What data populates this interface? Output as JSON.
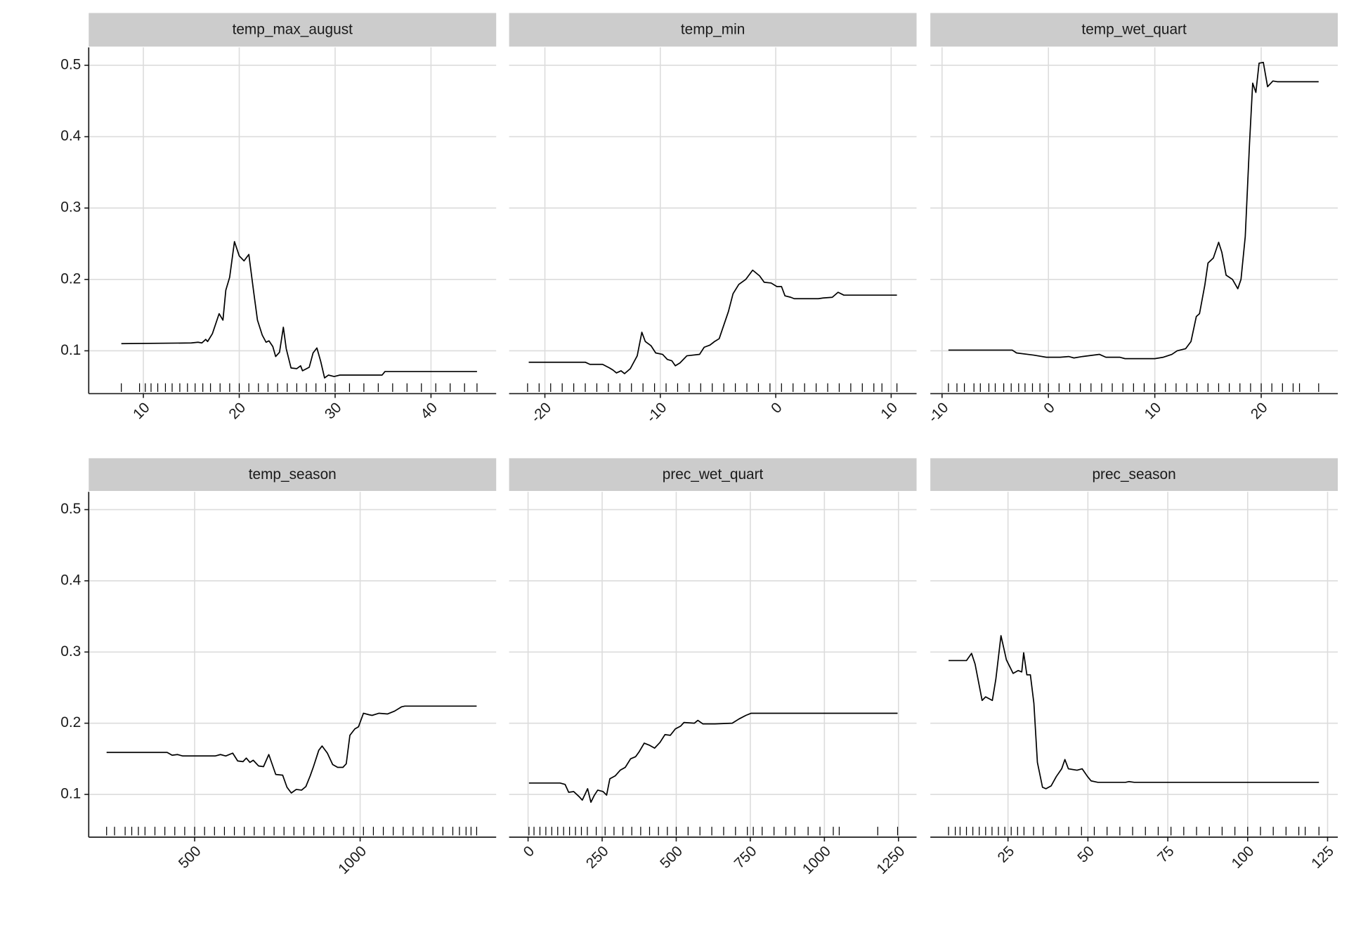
{
  "chart_data": [
    {
      "type": "line",
      "title": "temp_max_august",
      "color": "#000000",
      "grid": true,
      "x": [
        7.7,
        15.0,
        15.7,
        16.1,
        16.5,
        16.7,
        17.2,
        17.9,
        18.3,
        18.6,
        19.0,
        19.5,
        20.0,
        20.5,
        21.0,
        21.5,
        21.9,
        22.4,
        22.8,
        23.1,
        23.5,
        23.8,
        24.2,
        24.6,
        24.9,
        25.4,
        26.0,
        26.4,
        26.6,
        27.3,
        27.7,
        28.1,
        28.5,
        28.9,
        29.3,
        29.9,
        30.5,
        34.9,
        35.2,
        44.8
      ],
      "values": [
        0.11,
        0.111,
        0.112,
        0.111,
        0.116,
        0.113,
        0.124,
        0.152,
        0.143,
        0.185,
        0.203,
        0.253,
        0.233,
        0.226,
        0.235,
        0.183,
        0.143,
        0.122,
        0.112,
        0.114,
        0.106,
        0.092,
        0.098,
        0.133,
        0.103,
        0.076,
        0.075,
        0.079,
        0.072,
        0.077,
        0.097,
        0.104,
        0.085,
        0.062,
        0.066,
        0.064,
        0.066,
        0.066,
        0.071,
        0.071
      ],
      "rug": [
        7.7,
        9.6,
        10.2,
        10.8,
        11.5,
        12.3,
        13.0,
        13.8,
        14.6,
        15.4,
        16.2,
        17.0,
        18.0,
        19.0,
        20.0,
        21.0,
        22.0,
        23.0,
        24.0,
        25.0,
        26.0,
        27.0,
        28.0,
        29.0,
        30.0,
        31.5,
        33.0,
        34.5,
        36.0,
        37.5,
        39.0,
        40.5,
        42.0,
        43.5,
        44.8
      ],
      "xlim": [
        4.3,
        46.8
      ],
      "xticks": [
        10,
        20,
        30,
        40
      ],
      "ylim": [
        0.04,
        0.525
      ],
      "yticks": [
        0.1,
        0.2,
        0.3,
        0.4,
        0.5
      ]
    },
    {
      "type": "line",
      "title": "temp_min",
      "color": "#000000",
      "grid": true,
      "x": [
        -21.4,
        -16.5,
        -16.1,
        -15.0,
        -14.4,
        -14.1,
        -13.8,
        -13.4,
        -13.1,
        -12.6,
        -12.0,
        -11.6,
        -11.3,
        -10.8,
        -10.4,
        -9.8,
        -9.4,
        -9.0,
        -8.7,
        -8.3,
        -7.7,
        -6.6,
        -6.2,
        -5.7,
        -5.3,
        -4.9,
        -4.1,
        -3.7,
        -3.2,
        -2.6,
        -2.0,
        -1.4,
        -1.0,
        -0.4,
        0.1,
        0.5,
        0.8,
        1.3,
        1.6,
        3.7,
        4.1,
        4.9,
        5.4,
        5.9,
        10.5
      ],
      "values": [
        0.084,
        0.084,
        0.081,
        0.081,
        0.076,
        0.073,
        0.069,
        0.072,
        0.068,
        0.075,
        0.093,
        0.126,
        0.113,
        0.107,
        0.097,
        0.095,
        0.088,
        0.086,
        0.079,
        0.083,
        0.093,
        0.095,
        0.105,
        0.108,
        0.113,
        0.117,
        0.155,
        0.18,
        0.193,
        0.2,
        0.213,
        0.205,
        0.196,
        0.195,
        0.19,
        0.19,
        0.177,
        0.175,
        0.173,
        0.173,
        0.174,
        0.175,
        0.182,
        0.178,
        0.178
      ],
      "rug": [
        -21.5,
        -20.5,
        -19.5,
        -18.5,
        -17.5,
        -16.5,
        -15.5,
        -14.5,
        -13.5,
        -12.5,
        -11.5,
        -10.5,
        -9.5,
        -8.5,
        -7.5,
        -6.5,
        -5.5,
        -4.5,
        -3.5,
        -2.5,
        -1.5,
        -0.5,
        0.5,
        1.5,
        2.5,
        3.5,
        4.5,
        5.5,
        6.5,
        7.5,
        8.5,
        9.2,
        10.5
      ],
      "xlim": [
        -23.1,
        12.2
      ],
      "xticks": [
        -20,
        -10,
        0,
        10
      ],
      "ylim": [
        0.04,
        0.525
      ],
      "yticks": [
        0.1,
        0.2,
        0.3,
        0.4,
        0.5
      ]
    },
    {
      "type": "line",
      "title": "temp_wet_quart",
      "color": "#000000",
      "grid": true,
      "x": [
        -9.4,
        -3.4,
        -3.0,
        -1.4,
        -0.2,
        1.1,
        1.9,
        2.4,
        3.2,
        4.8,
        5.4,
        6.7,
        7.2,
        10.0,
        10.8,
        11.6,
        12.1,
        12.9,
        13.4,
        13.9,
        14.2,
        14.7,
        15.0,
        15.5,
        16.0,
        16.3,
        16.7,
        17.3,
        17.8,
        18.1,
        18.5,
        18.9,
        19.2,
        19.5,
        19.8,
        20.2,
        20.6,
        21.1,
        21.5,
        25.4
      ],
      "values": [
        0.101,
        0.101,
        0.097,
        0.094,
        0.091,
        0.091,
        0.092,
        0.09,
        0.092,
        0.095,
        0.091,
        0.091,
        0.089,
        0.089,
        0.091,
        0.095,
        0.1,
        0.103,
        0.113,
        0.148,
        0.152,
        0.192,
        0.223,
        0.23,
        0.252,
        0.238,
        0.206,
        0.2,
        0.187,
        0.2,
        0.26,
        0.39,
        0.475,
        0.462,
        0.503,
        0.504,
        0.47,
        0.478,
        0.477,
        0.477
      ],
      "rug": [
        -9.4,
        -8.6,
        -7.9,
        -7.0,
        -6.4,
        -5.6,
        -5.0,
        -4.2,
        -3.5,
        -2.8,
        -2.2,
        -1.5,
        -0.8,
        0,
        1,
        2,
        3,
        4,
        5,
        6,
        7,
        8,
        9,
        10,
        11,
        12,
        13,
        14,
        15,
        16,
        17,
        18,
        19,
        20,
        21,
        22,
        23,
        23.6,
        25.4
      ],
      "xlim": [
        -11.1,
        27.2
      ],
      "xticks": [
        -10,
        0,
        10,
        20
      ],
      "ylim": [
        0.04,
        0.525
      ],
      "yticks": [
        0.1,
        0.2,
        0.3,
        0.4,
        0.5
      ]
    },
    {
      "type": "line",
      "title": "temp_season",
      "color": "#000000",
      "grid": true,
      "x": [
        234,
        417,
        432,
        448,
        464,
        562,
        578,
        594,
        615,
        630,
        646,
        656,
        667,
        677,
        693,
        708,
        724,
        745,
        766,
        779,
        792,
        807,
        823,
        836,
        849,
        859,
        875,
        885,
        901,
        917,
        932,
        948,
        958,
        969,
        984,
        995,
        1010,
        1026,
        1036,
        1057,
        1083,
        1104,
        1125,
        1135,
        1352
      ],
      "values": [
        0.159,
        0.159,
        0.155,
        0.156,
        0.154,
        0.154,
        0.156,
        0.154,
        0.158,
        0.147,
        0.146,
        0.151,
        0.145,
        0.148,
        0.14,
        0.139,
        0.156,
        0.128,
        0.127,
        0.11,
        0.102,
        0.107,
        0.106,
        0.111,
        0.126,
        0.139,
        0.162,
        0.168,
        0.158,
        0.142,
        0.138,
        0.138,
        0.143,
        0.183,
        0.192,
        0.195,
        0.214,
        0.212,
        0.211,
        0.214,
        0.213,
        0.217,
        0.223,
        0.224,
        0.224
      ],
      "rug": [
        234,
        258,
        290,
        310,
        330,
        350,
        380,
        410,
        440,
        470,
        500,
        530,
        560,
        590,
        620,
        650,
        680,
        710,
        740,
        770,
        800,
        830,
        860,
        890,
        920,
        950,
        980,
        1010,
        1040,
        1070,
        1100,
        1130,
        1160,
        1190,
        1220,
        1250,
        1280,
        1300,
        1320,
        1335,
        1352
      ],
      "xlim": [
        180,
        1411
      ],
      "xticks": [
        500,
        1000
      ],
      "ylim": [
        0.04,
        0.525
      ],
      "yticks": [
        0.1,
        0.2,
        0.3,
        0.4,
        0.5
      ]
    },
    {
      "type": "line",
      "title": "prec_wet_quart",
      "color": "#000000",
      "grid": true,
      "x": [
        3,
        108,
        125,
        137,
        154,
        172,
        183,
        201,
        212,
        224,
        235,
        253,
        265,
        276,
        294,
        311,
        328,
        346,
        363,
        375,
        392,
        410,
        427,
        445,
        462,
        480,
        497,
        515,
        526,
        561,
        573,
        590,
        631,
        689,
        712,
        735,
        753,
        794,
        1247
      ],
      "values": [
        0.116,
        0.116,
        0.114,
        0.103,
        0.104,
        0.097,
        0.092,
        0.108,
        0.089,
        0.099,
        0.106,
        0.104,
        0.099,
        0.122,
        0.126,
        0.134,
        0.138,
        0.15,
        0.153,
        0.16,
        0.172,
        0.169,
        0.165,
        0.173,
        0.184,
        0.183,
        0.192,
        0.196,
        0.201,
        0.2,
        0.204,
        0.199,
        0.199,
        0.2,
        0.206,
        0.211,
        0.214,
        0.214,
        0.214
      ],
      "rug": [
        3,
        20,
        40,
        60,
        80,
        100,
        120,
        140,
        160,
        180,
        200,
        230,
        260,
        290,
        320,
        350,
        380,
        410,
        440,
        470,
        500,
        540,
        580,
        620,
        660,
        700,
        740,
        760,
        790,
        830,
        870,
        900,
        945,
        985,
        1030,
        1050,
        1180,
        1247
      ],
      "xlim": [
        -64,
        1311
      ],
      "xticks": [
        0,
        250,
        500,
        750,
        1000,
        1250
      ],
      "ylim": [
        0.04,
        0.525
      ],
      "yticks": [
        0.1,
        0.2,
        0.3,
        0.4,
        0.5
      ]
    },
    {
      "type": "line",
      "title": "prec_season",
      "color": "#000000",
      "grid": true,
      "x": [
        6.4,
        12.0,
        13.6,
        14.7,
        16.9,
        18.0,
        20.1,
        21.2,
        22.8,
        24.5,
        26.6,
        28.2,
        29.3,
        29.9,
        30.9,
        32.0,
        33.1,
        34.2,
        35.8,
        36.9,
        38.5,
        40.1,
        41.8,
        42.8,
        43.9,
        46.6,
        48.2,
        49.9,
        51.0,
        53.1,
        61.8,
        62.8,
        64.5,
        122.3
      ],
      "values": [
        0.288,
        0.288,
        0.298,
        0.283,
        0.232,
        0.237,
        0.232,
        0.262,
        0.323,
        0.289,
        0.27,
        0.274,
        0.272,
        0.299,
        0.268,
        0.268,
        0.228,
        0.145,
        0.11,
        0.108,
        0.112,
        0.125,
        0.136,
        0.149,
        0.136,
        0.134,
        0.136,
        0.125,
        0.119,
        0.117,
        0.117,
        0.118,
        0.117,
        0.117
      ],
      "rug": [
        6.4,
        8.5,
        10,
        12,
        14,
        16,
        18,
        20,
        22,
        24,
        26,
        28,
        30,
        33,
        36,
        40,
        44,
        48,
        52,
        56,
        60,
        64,
        68,
        72,
        76,
        80,
        84,
        88,
        92,
        96,
        100,
        104,
        108,
        112,
        116,
        118,
        122.3
      ],
      "xlim": [
        0.7,
        128.2
      ],
      "xticks": [
        25,
        50,
        75,
        100,
        125
      ],
      "ylim": [
        0.04,
        0.525
      ],
      "yticks": [
        0.1,
        0.2,
        0.3,
        0.4,
        0.5
      ]
    }
  ]
}
